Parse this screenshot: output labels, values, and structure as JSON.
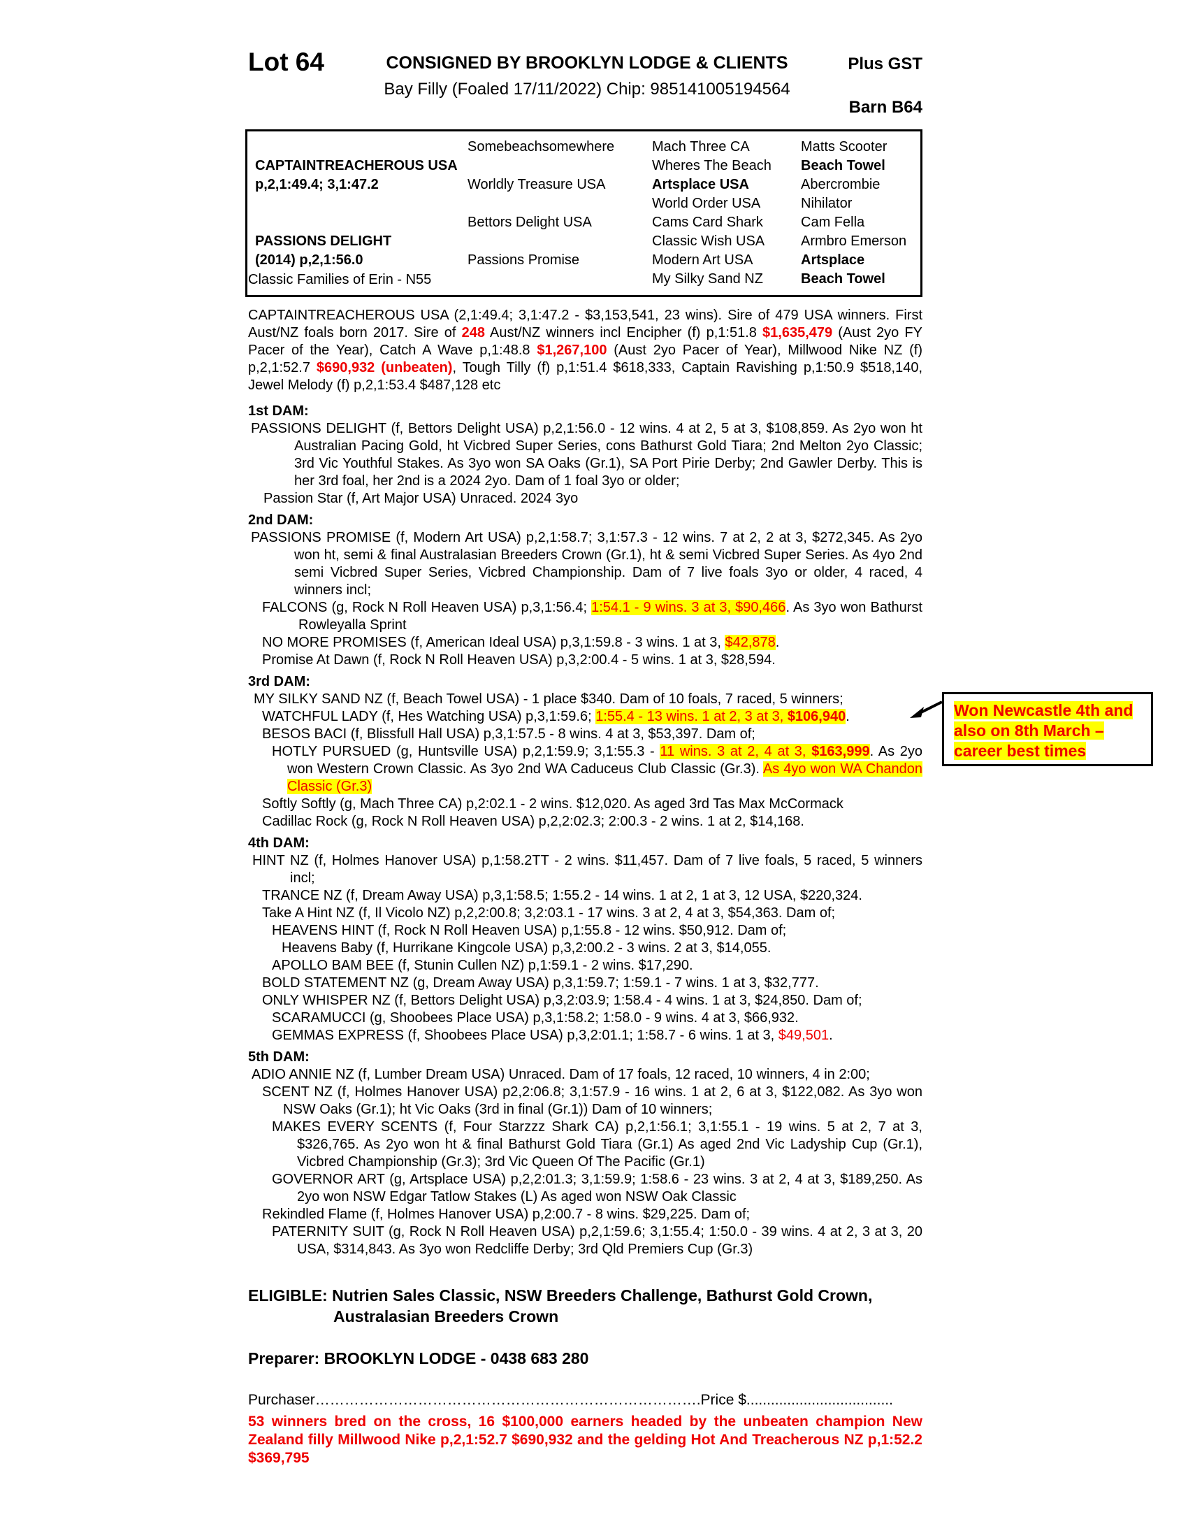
{
  "colors": {
    "accent_red": "#ee0000",
    "highlight_yellow": "#ffff00"
  },
  "header": {
    "lot": "Lot 64",
    "consignor": "CONSIGNED BY BROOKLYN LODGE & CLIENTS",
    "gst": "Plus GST",
    "foaled": "Bay Filly (Foaled  17/11/2022) Chip: 985141005194564",
    "barn": "Barn B64"
  },
  "pedigree": {
    "rows": [
      [
        {
          "t": ""
        },
        {
          "t": "Somebeachsomewhere"
        },
        {
          "t": "Mach Three CA"
        },
        {
          "t": "Matts Scooter"
        }
      ],
      [
        {
          "t": "CAPTAINTREACHEROUS USA",
          "b": 1
        },
        {
          "t": ""
        },
        {
          "t": "Wheres The Beach"
        },
        {
          "t": "Beach Towel",
          "b": 1
        }
      ],
      [
        {
          "t": "p,2,1:49.4; 3,1:47.2",
          "b": 1
        },
        {
          "t": "Worldly Treasure USA"
        },
        {
          "t": "Artsplace USA",
          "b": 1
        },
        {
          "t": "Abercrombie"
        }
      ],
      [
        {
          "t": ""
        },
        {
          "t": ""
        },
        {
          "t": "World Order USA"
        },
        {
          "t": "Nihilator"
        }
      ],
      [
        {
          "t": ""
        },
        {
          "t": "Bettors Delight USA"
        },
        {
          "t": "Cams Card Shark"
        },
        {
          "t": "Cam Fella"
        }
      ],
      [
        {
          "t": "PASSIONS DELIGHT",
          "b": 1
        },
        {
          "t": ""
        },
        {
          "t": "Classic Wish USA"
        },
        {
          "t": "Armbro Emerson"
        }
      ],
      [
        {
          "t": "(2014) p,2,1:56.0",
          "b": 1
        },
        {
          "t": "Passions Promise"
        },
        {
          "t": "Modern Art USA"
        },
        {
          "t": "Artsplace",
          "b": 1
        }
      ],
      [
        {
          "t": ""
        },
        {
          "t": ""
        },
        {
          "t": "My Silky Sand NZ"
        },
        {
          "t": "Beach Towel",
          "b": 1
        }
      ]
    ]
  },
  "note": {
    "lines": [
      "Won Newcastle 4th  and",
      "also on 8th March –",
      "career best times"
    ]
  },
  "flow": [
    {
      "cls": "plain",
      "seg": [
        {
          "t": "Classic Families of Erin - N55"
        }
      ]
    },
    {
      "cls": "sire sp-lg",
      "seg": [
        {
          "t": "CAPTAINTREACHEROUS USA (2,1:49.4; 3,1:47.2 - $3,153,541, 23 wins). Sire of 479 USA winners. First Aust/NZ foals born 2017. Sire of ",
          "s": "b"
        },
        {
          "t": "248",
          "s": "srb"
        },
        {
          "t": " Aust/NZ winners incl Encipher (f) p,1:51.8 ",
          "s": "b"
        },
        {
          "t": "$1,635,479",
          "s": "srb"
        },
        {
          "t": " (Aust 2yo FY Pacer of the Year), Catch A Wave p,1:48.8 ",
          "s": "b"
        },
        {
          "t": "$1,267,100",
          "s": "srb"
        },
        {
          "t": " (Aust 2yo Pacer of Year), Millwood Nike NZ (f) p,2,1:52.7 ",
          "s": "b"
        },
        {
          "t": "$690,932 (unbeaten)",
          "s": "srb"
        },
        {
          "t": ", Tough Tilly (f) p,1:51.4 $618,333, Captain Ravishing p,1:50.9 $518,140, Jewel Melody (f) p,2,1:53.4 $487,128 etc",
          "s": "b"
        }
      ]
    },
    {
      "cls": "h sp-md",
      "seg": [
        {
          "t": "1st DAM:",
          "s": "b"
        }
      ]
    },
    {
      "cls": "dmain",
      "seg": [
        {
          "t": "PASSIONS DELIGHT",
          "s": "b"
        },
        {
          "t": " (f, Bettors Delight USA) p,2,1:56.0 - 12 wins. 4 at 2, 5 at 3, "
        },
        {
          "t": "$108,859",
          "s": "b"
        },
        {
          "t": ". As 2yo won ht Australian Pacing Gold, ht Vicbred Super Series, cons Bathurst Gold Tiara; 2nd Melton 2yo Classic; 3rd Vic Youthful Stakes. As 3yo won SA Oaks "
        },
        {
          "t": "(Gr.1)",
          "s": "b"
        },
        {
          "t": ", SA Port Pirie Derby; 2nd Gawler Derby. This is her 3rd foal, her 2nd is a 2024 2yo. Dam of 1 foal 3yo or older;"
        }
      ]
    },
    {
      "cls": "star",
      "seg": [
        {
          "t": "Passion Star (f, Art Major USA) Unraced. 2024 3yo"
        }
      ]
    },
    {
      "cls": "h sp-sm",
      "seg": [
        {
          "t": "2nd DAM:",
          "s": "b"
        }
      ]
    },
    {
      "cls": "dmain",
      "seg": [
        {
          "t": "PASSIONS PROMISE",
          "s": "b"
        },
        {
          "t": " (f, Modern Art USA) p,2,1:58.7; 3,1:57.3 - 12 wins. 7 at 2, 2 at 3, "
        },
        {
          "t": "$272,345",
          "s": "b"
        },
        {
          "t": ". As 2yo won ht, semi & final Australasian Breeders Crown "
        },
        {
          "t": "(Gr.1)",
          "s": "b"
        },
        {
          "t": ", ht & semi Vicbred Super Series. As 4yo 2nd semi Vicbred Super Series, Vicbred Championship. Dam of 7 live foals 3yo or older, 4 raced, 4 winners incl;"
        }
      ]
    },
    {
      "cls": "sub1",
      "seg": [
        {
          "t": "FALCONS",
          "s": "b"
        },
        {
          "t": " (g, Rock N Roll Heaven USA) p,3,1:56.4; "
        },
        {
          "t": "1:54.1 - 9 wins. 3 at 3, $90,466",
          "s": "shl"
        },
        {
          "t": ". As 3yo won Bathurst Rowleyalla Sprint"
        }
      ]
    },
    {
      "cls": "sub1",
      "seg": [
        {
          "t": "NO MORE PROMISES",
          "s": "b"
        },
        {
          "t": " (f, American Ideal USA) p,3,1:59.8 - 3 wins. 1 at 3, "
        },
        {
          "t": "$42,878",
          "s": "shl"
        },
        {
          "t": "."
        }
      ]
    },
    {
      "cls": "sub1",
      "seg": [
        {
          "t": "Promise At Dawn (f, Rock N Roll Heaven USA) p,3,2:00.4 - 5 wins. 1 at 3, $28,594."
        }
      ]
    },
    {
      "cls": "h sp-sm",
      "seg": [
        {
          "t": "3rd DAM:",
          "s": "b"
        }
      ]
    },
    {
      "cls": "silky",
      "seg": [
        {
          "t": "MY SILKY SAND NZ (f, Beach Towel USA) - 1 place $340. Dam of 10 foals, 7 raced, 5 winners;"
        }
      ]
    },
    {
      "cls": "sub1",
      "seg": [
        {
          "t": "WATCHFUL LADY",
          "s": "b"
        },
        {
          "t": " (f, Hes Watching USA) p,3,1:59.6; "
        },
        {
          "t": "1:55.4 - 13 wins. 1 at 2, 3 at 3, ",
          "s": "shl"
        },
        {
          "t": "$106,940",
          "s": "shlb"
        },
        {
          "t": "."
        }
      ]
    },
    {
      "cls": "sub1",
      "seg": [
        {
          "t": "BESOS BACI",
          "s": "b"
        },
        {
          "t": " (f, Blissfull Hall USA) p,3,1:57.5 - 8 wins. 4 at 3, $53,397. Dam of;"
        }
      ]
    },
    {
      "cls": "sub2",
      "seg": [
        {
          "t": "HOTLY PURSUED",
          "s": "b"
        },
        {
          "t": " (g, Huntsville USA) p,2,1:59.9; 3,1:55.3 - "
        },
        {
          "t": "11 wins. 3 at 2, 4 at 3, ",
          "s": "shl"
        },
        {
          "t": "$163,999",
          "s": "shlb"
        },
        {
          "t": ". As 2yo won Western Crown Classic. As 3yo 2nd WA Caduceus Club Classic "
        },
        {
          "t": "(Gr.3)",
          "s": "b"
        },
        {
          "t": ". "
        },
        {
          "t": "As 4yo won WA Chandon Classic (Gr.3)",
          "s": "shl"
        }
      ]
    },
    {
      "cls": "sub1",
      "seg": [
        {
          "t": "Softly Softly",
          "s": "b"
        },
        {
          "t": " (g, Mach Three CA) p,2:02.1 - 2 wins. $12,020. As aged 3rd Tas Max McCormack"
        }
      ]
    },
    {
      "cls": "sub1",
      "seg": [
        {
          "t": "Cadillac Rock (g, Rock N Roll Heaven USA) p,2,2:02.3; 2:00.3 - 2 wins. 1 at 2, $14,168."
        }
      ]
    },
    {
      "cls": "h sp-sm",
      "seg": [
        {
          "t": "4th DAM:",
          "s": "b"
        }
      ]
    },
    {
      "cls": "hint",
      "seg": [
        {
          "t": "HINT NZ",
          "s": "b"
        },
        {
          "t": " (f, Holmes Hanover USA) p,1:58.2TT - 2 wins. $11,457. Dam of 7 live foals, 5 raced, 5 winners incl;"
        }
      ]
    },
    {
      "cls": "sub1",
      "seg": [
        {
          "t": "TRANCE NZ",
          "s": "b"
        },
        {
          "t": " (f, Dream Away USA) p,3,1:58.5; 1:55.2 - 14 wins. 1 at 2, 1 at 3, 12 USA, "
        },
        {
          "t": "$220,324",
          "s": "b"
        },
        {
          "t": "."
        }
      ]
    },
    {
      "cls": "sub1",
      "seg": [
        {
          "t": "Take A Hint NZ (f, Il Vicolo NZ) p,2,2:00.8; 3,2:03.1 - 17 wins. 3 at 2, 4 at 3, $54,363. Dam of;"
        }
      ]
    },
    {
      "cls": "sub2",
      "seg": [
        {
          "t": "HEAVENS HINT",
          "s": "b"
        },
        {
          "t": " (f, Rock N Roll Heaven USA) p,1:55.8 - 12 wins. $50,912. Dam of;"
        }
      ]
    },
    {
      "cls": "baby",
      "seg": [
        {
          "t": "Heavens Baby (f, Hurrikane Kingcole USA) p,3,2:00.2 - 3 wins. 2 at 3, $14,055."
        }
      ]
    },
    {
      "cls": "sub2",
      "seg": [
        {
          "t": "APOLLO BAM BEE",
          "s": "b"
        },
        {
          "t": " (f, Stunin Cullen NZ) p,1:59.1 - 2 wins. $17,290."
        }
      ]
    },
    {
      "cls": "sub1",
      "seg": [
        {
          "t": "BOLD STATEMENT NZ",
          "s": "b"
        },
        {
          "t": " (g, Dream Away USA) p,3,1:59.7; 1:59.1 - 7 wins. 1 at 3, $32,777."
        }
      ]
    },
    {
      "cls": "sub1",
      "seg": [
        {
          "t": "ONLY WHISPER NZ",
          "s": "b"
        },
        {
          "t": " (f, Bettors Delight USA) p,3,2:03.9; 1:58.4 - 4 wins. 1 at 3, $24,850. Dam of;"
        }
      ]
    },
    {
      "cls": "sub2",
      "seg": [
        {
          "t": "SCARAMUCCI",
          "s": "b"
        },
        {
          "t": " (g, Shoobees Place USA) p,3,1:58.2; 1:58.0 - 9 wins. 4 at 3, $66,932."
        }
      ]
    },
    {
      "cls": "sub2",
      "seg": [
        {
          "t": "GEMMAS EXPRESS",
          "s": "b"
        },
        {
          "t": " (f, Shoobees Place USA) p,3,2:01.1; 1:58.7 - 6 wins. 1 at 3, "
        },
        {
          "t": "$49,501",
          "s": "sr"
        },
        {
          "t": "."
        }
      ]
    },
    {
      "cls": "h sp-sm",
      "seg": [
        {
          "t": "5th DAM:",
          "s": "b"
        }
      ]
    },
    {
      "cls": "adio",
      "seg": [
        {
          "t": "ADIO ANNIE NZ (f, Lumber Dream USA) Unraced. Dam of 17 foals, 12 raced, 10 winners, 4 in 2:00;"
        }
      ]
    },
    {
      "cls": "scent",
      "seg": [
        {
          "t": "SCENT NZ",
          "s": "b"
        },
        {
          "t": " (f, Holmes Hanover USA) p2,2:06.8; 3,1:57.9 - 16 wins. 1 at 2, 6 at 3, "
        },
        {
          "t": "$122,082",
          "s": "b"
        },
        {
          "t": ". As 3yo won NSW Oaks "
        },
        {
          "t": "(Gr.1)",
          "s": "b"
        },
        {
          "t": "; ht Vic Oaks (3rd in final "
        },
        {
          "t": "(Gr.1)",
          "s": "b"
        },
        {
          "t": ") Dam of 10 winners;"
        }
      ]
    },
    {
      "cls": "sub2w",
      "seg": [
        {
          "t": "MAKES EVERY SCENTS",
          "s": "b"
        },
        {
          "t": " (f, Four Starzzz Shark CA) p,2,1:56.1; 3,1:55.1 - 19 wins. 5 at 2, 7 at 3, "
        },
        {
          "t": "$326,765",
          "s": "b"
        },
        {
          "t": ". As 2yo won ht & final Bathurst Gold Tiara "
        },
        {
          "t": "(Gr.1)",
          "s": "b"
        },
        {
          "t": " As aged 2nd Vic Ladyship Cup "
        },
        {
          "t": "(Gr.1)",
          "s": "b"
        },
        {
          "t": ", Vicbred Championship "
        },
        {
          "t": "(Gr.3)",
          "s": "b"
        },
        {
          "t": "; 3rd Vic Queen Of The Pacific "
        },
        {
          "t": "(Gr.1)",
          "s": "b"
        }
      ]
    },
    {
      "cls": "sub2w",
      "seg": [
        {
          "t": "GOVERNOR ART",
          "s": "b"
        },
        {
          "t": " (g, Artsplace USA) p,2,2:01.3; 3,1:59.9; 1:58.6 - 23 wins. 3 at 2, 4 at 3, "
        },
        {
          "t": "$189,250",
          "s": "b"
        },
        {
          "t": ". As 2yo won NSW Edgar Tatlow Stakes "
        },
        {
          "t": "(L)",
          "s": "b"
        },
        {
          "t": " As aged won NSW Oak Classic"
        }
      ]
    },
    {
      "cls": "sub1",
      "seg": [
        {
          "t": "Rekindled Flame (f, Holmes Hanover USA) p,2:00.7 - 8 wins. $29,225. Dam of;"
        }
      ]
    },
    {
      "cls": "sub2w",
      "seg": [
        {
          "t": "PATERNITY SUIT",
          "s": "b"
        },
        {
          "t": " (g, Rock N Roll Heaven USA) p,2,1:59.6; 3,1:55.4; "
        },
        {
          "t": "1:50.0",
          "s": "b"
        },
        {
          "t": " - 39 wins. 4 at 2, 3 at 3, 20 USA, "
        },
        {
          "t": "$314,843",
          "s": "b"
        },
        {
          "t": ". As 3yo won Redcliffe Derby; 3rd Qld Premiers Cup "
        },
        {
          "t": "(Gr.3)",
          "s": "b"
        }
      ]
    }
  ],
  "footer": {
    "eligible1": "ELIGIBLE: Nutrien Sales Classic, NSW Breeders Challenge, Bathurst Gold Crown,",
    "eligible2": "Australasian Breeders Crown",
    "preparer": "Preparer: BROOKLYN LODGE - 0438 683 280",
    "purchaser": "Purchaser…………………………………………………………………….Price $....................................",
    "cross_note": "53 winners bred on the cross, 16 $100,000 earners headed by the unbeaten champion New Zealand filly Millwood Nike p,2,1:52.7 $690,932 and the gelding Hot And Treacherous NZ p,1:52.2 $369,795"
  }
}
